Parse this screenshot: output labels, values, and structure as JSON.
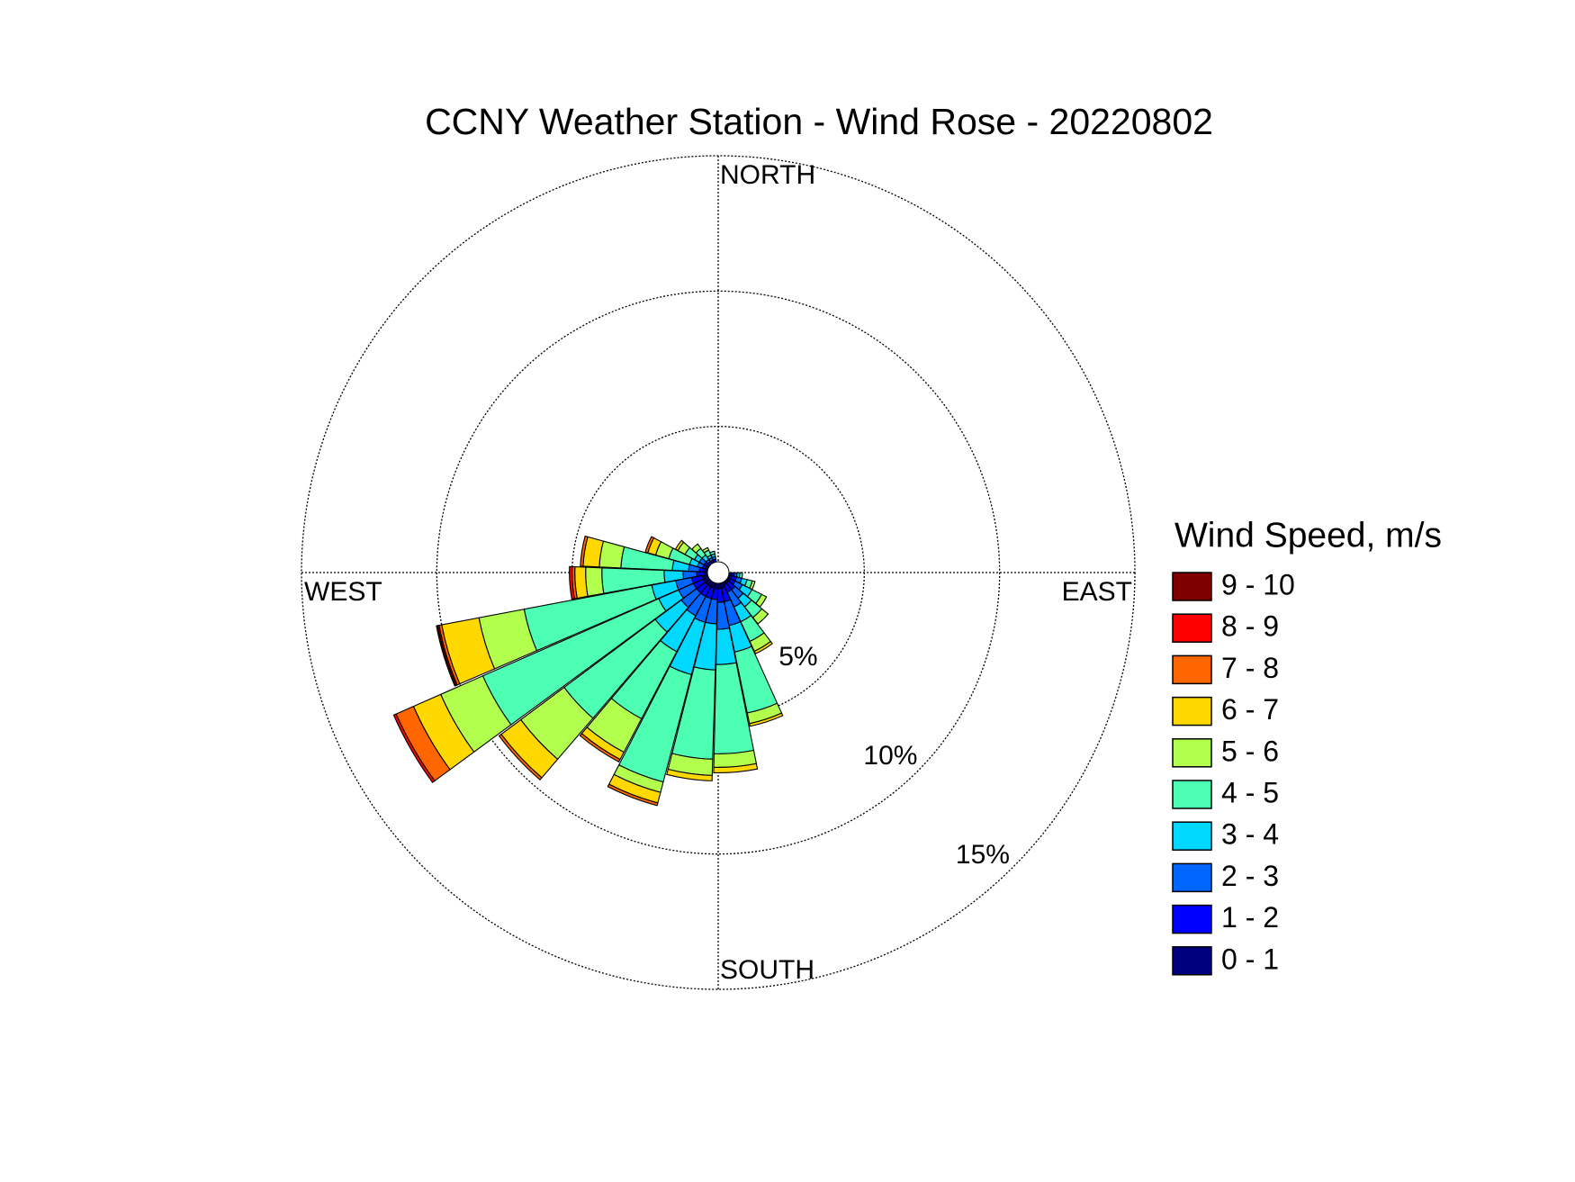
{
  "chart_data": {
    "type": "windrose",
    "title": "CCNY Weather Station - Wind Rose - 20220802",
    "legend_title": "Wind Speed, m/s",
    "direction_labels": [
      "NORTH",
      "EAST",
      "SOUTH",
      "WEST"
    ],
    "x": [
      97,
      110,
      123,
      136,
      149,
      162,
      175,
      188,
      201,
      214,
      227,
      240,
      253,
      266,
      279,
      292,
      305,
      318,
      331,
      344
    ],
    "rlim": [
      0,
      15
    ],
    "rticks": [
      {
        "value": 5,
        "label": "5%"
      },
      {
        "value": 10,
        "label": "10%"
      },
      {
        "value": 15,
        "label": "15%"
      }
    ],
    "grid": true,
    "legend": "right",
    "series": [
      {
        "name": "0 - 1",
        "color": "#00007f",
        "values": [
          0.1,
          0.1,
          0.1,
          0.1,
          0.1,
          0.2,
          0.2,
          0.2,
          0.2,
          0.2,
          0.2,
          0.2,
          0.2,
          0.1,
          0.1,
          0.1,
          0.1,
          0,
          0,
          0
        ]
      },
      {
        "name": "1 - 2",
        "color": "#0000ff",
        "values": [
          0.1,
          0.2,
          0.2,
          0.3,
          0.3,
          0.5,
          0.5,
          0.4,
          0.4,
          0.4,
          0.4,
          0.4,
          0.4,
          0.3,
          0.2,
          0.1,
          0.1,
          0.1,
          0.1,
          0.1
        ]
      },
      {
        "name": "2 - 3",
        "color": "#0066ff",
        "values": [
          0.1,
          0.2,
          0.3,
          0.4,
          0.6,
          0.9,
          1.0,
          0.9,
          0.9,
          0.8,
          0.7,
          0.6,
          0.6,
          0.5,
          0.4,
          0.2,
          0.2,
          0.1,
          0.1,
          0.1
        ]
      },
      {
        "name": "3 - 4",
        "color": "#00d8ff",
        "values": [
          0.1,
          0.2,
          0.4,
          0.4,
          0.6,
          1.0,
          1.3,
          1.7,
          2.0,
          1.5,
          1.2,
          0.8,
          0.9,
          0.7,
          0.6,
          0.3,
          0.2,
          0.2,
          0.1,
          0.1
        ]
      },
      {
        "name": "4 - 5",
        "color": "#4dffb3",
        "values": [
          0.1,
          0.2,
          0.4,
          0.5,
          0.8,
          2.3,
          3.3,
          3.3,
          4.1,
          2.8,
          4.2,
          7.1,
          4.8,
          2.3,
          1.9,
          0.8,
          0.4,
          0.3,
          0.2,
          0.1
        ]
      },
      {
        "name": "5 - 6",
        "color": "#b3ff4d",
        "values": [
          0,
          0.1,
          0.2,
          0.3,
          0.4,
          0.4,
          0.5,
          0.6,
          0.4,
          1.4,
          2.0,
          1.7,
          1.7,
          0.6,
          0.8,
          0.5,
          0.3,
          0.2,
          0.1,
          0
        ]
      },
      {
        "name": "6 - 7",
        "color": "#ffd800",
        "values": [
          0,
          0,
          0,
          0,
          0.1,
          0.1,
          0.2,
          0.2,
          0.4,
          0.3,
          0.9,
          1.1,
          1.4,
          0.4,
          0.6,
          0.3,
          0.1,
          0,
          0,
          0
        ]
      },
      {
        "name": "7 - 8",
        "color": "#ff6600",
        "values": [
          0,
          0,
          0,
          0,
          0,
          0,
          0,
          0,
          0.1,
          0.1,
          0.1,
          0.7,
          0.1,
          0.1,
          0.1,
          0.1,
          0,
          0,
          0,
          0
        ]
      },
      {
        "name": "8 - 9",
        "color": "#ff0000",
        "values": [
          0,
          0,
          0,
          0,
          0,
          0,
          0,
          0,
          0,
          0,
          0,
          0.1,
          0.05,
          0.1,
          0,
          0,
          0,
          0,
          0,
          0
        ]
      },
      {
        "name": "9 - 10",
        "color": "#7f0000",
        "values": [
          0,
          0,
          0,
          0,
          0,
          0,
          0,
          0,
          0,
          0,
          0,
          0,
          0.05,
          0,
          0,
          0,
          0,
          0,
          0,
          0
        ]
      }
    ]
  }
}
